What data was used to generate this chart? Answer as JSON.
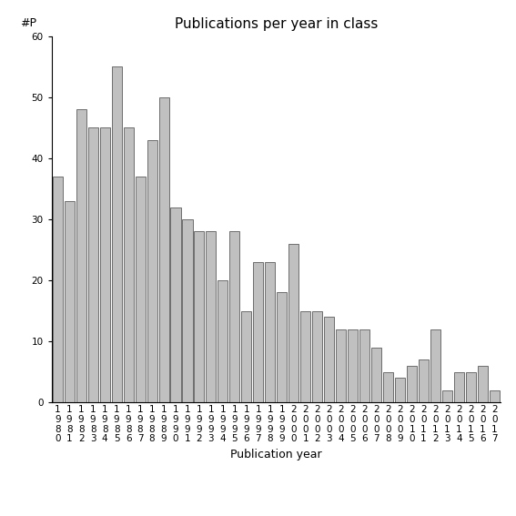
{
  "title": "Publications per year in class",
  "xlabel": "Publication year",
  "ylabel": "#P",
  "years": [
    "1980",
    "1981",
    "1982",
    "1983",
    "1984",
    "1985",
    "1986",
    "1987",
    "1988",
    "1989",
    "1990",
    "1991",
    "1992",
    "1993",
    "1994",
    "1995",
    "1996",
    "1997",
    "1998",
    "1999",
    "2000",
    "2001",
    "2002",
    "2003",
    "2004",
    "2005",
    "2006",
    "2007",
    "2008",
    "2009",
    "2010",
    "2011",
    "2012",
    "2013",
    "2014",
    "2015",
    "2016",
    "2017"
  ],
  "values": [
    37,
    33,
    48,
    45,
    45,
    55,
    45,
    37,
    43,
    50,
    32,
    30,
    28,
    28,
    20,
    28,
    15,
    23,
    23,
    18,
    26,
    15,
    15,
    14,
    12,
    12,
    12,
    9,
    5,
    4,
    6,
    7,
    12,
    2,
    5,
    5,
    6,
    2
  ],
  "bar_color": "#c0c0c0",
  "bar_edge_color": "#404040",
  "ylim": [
    0,
    60
  ],
  "yticks": [
    0,
    10,
    20,
    30,
    40,
    50,
    60
  ],
  "background_color": "#ffffff",
  "title_fontsize": 11,
  "axis_label_fontsize": 9,
  "tick_fontsize": 7.5
}
